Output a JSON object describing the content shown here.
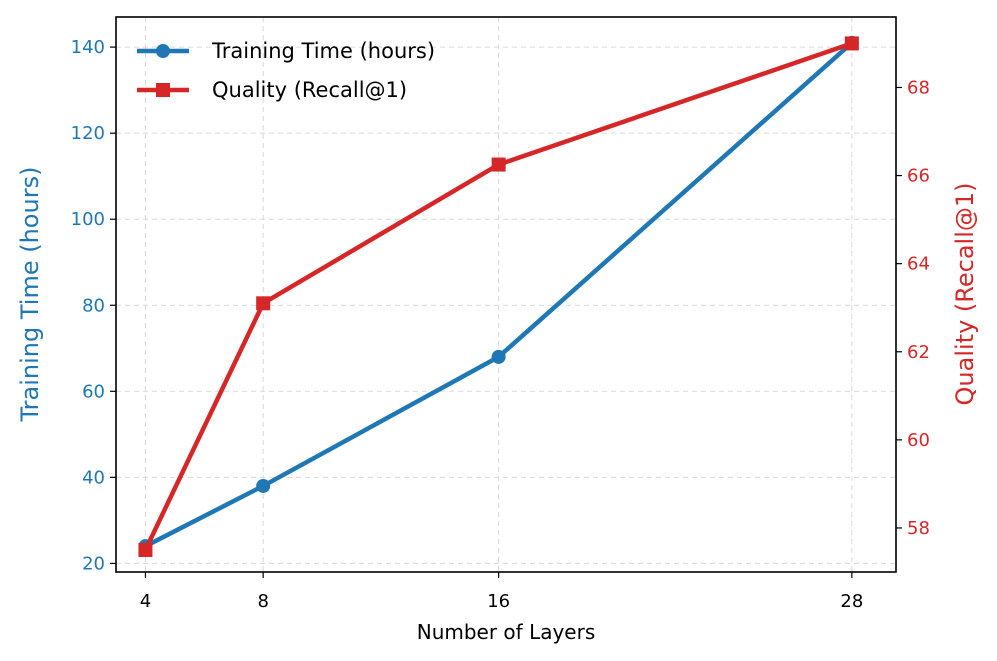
{
  "chart_data": {
    "type": "line",
    "x": [
      4,
      8,
      16,
      28
    ],
    "xlabel": "Number of Layers",
    "xlim": [
      3,
      29.5
    ],
    "xticks": [
      4,
      8,
      16,
      28
    ],
    "grid": true,
    "legend_position": "top-left",
    "series": [
      {
        "name": "Training Time (hours)",
        "axis": "left",
        "color": "#1f77b4",
        "marker": "circle",
        "values": [
          24,
          38,
          68,
          141
        ]
      },
      {
        "name": "Quality (Recall@1)",
        "axis": "right",
        "color": "#d62728",
        "marker": "square",
        "values": [
          57.5,
          63.1,
          66.25,
          69.0
        ]
      }
    ],
    "ylabel_left": "Training Time (hours)",
    "ylim_left": [
      18,
      147
    ],
    "yticks_left": [
      20,
      40,
      60,
      80,
      100,
      120,
      140
    ],
    "ylabel_right": "Quality (Recall@1)",
    "ylim_right": [
      57.0,
      69.6
    ],
    "yticks_right": [
      58,
      60,
      62,
      64,
      66,
      68
    ]
  }
}
